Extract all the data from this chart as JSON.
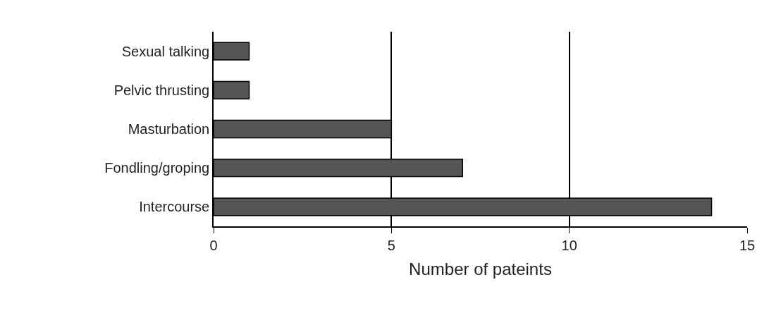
{
  "chart_data": {
    "type": "bar",
    "orientation": "horizontal",
    "xlabel": "Number of pateints",
    "categories": [
      "Sexual talking",
      "Pelvic thrusting",
      "Masturbation",
      "Fondling/groping",
      "Intercourse"
    ],
    "values": [
      1,
      1,
      5,
      7,
      14
    ],
    "color": "#555555",
    "xlim": [
      0,
      15
    ],
    "xticks": [
      0,
      5,
      10,
      15
    ],
    "grid": "x",
    "legend": false
  }
}
